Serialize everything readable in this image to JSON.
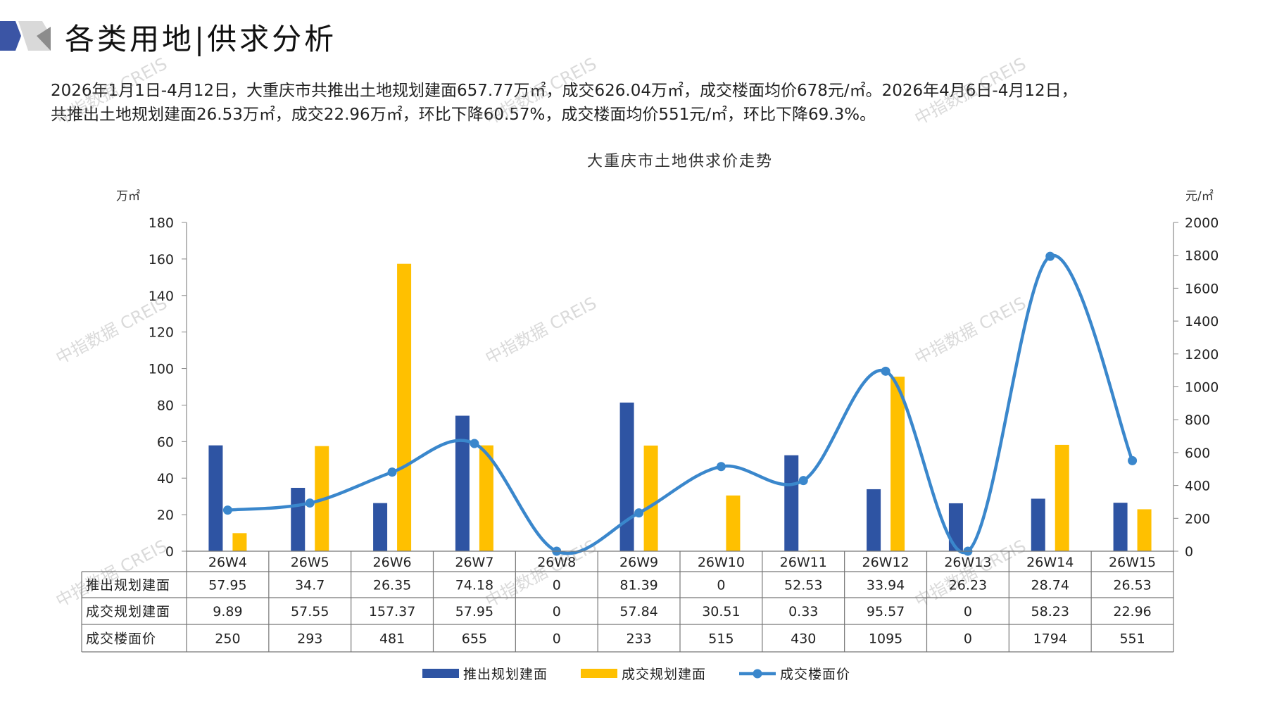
{
  "header": {
    "title": "各类用地|供求分析",
    "summary_line1": "2026年1月1日-4月12日，大重庆市共推出土地规划建面657.77万㎡，成交626.04万㎡，成交楼面均价678元/㎡。2026年4月6日-4月12日，",
    "summary_line2": "共推出土地规划建面26.53万㎡，成交22.96万㎡，环比下降60.57%，成交楼面均价551元/㎡，环比下降69.3%。"
  },
  "watermark": "中指数据 CREIS",
  "colors": {
    "supply": "#2E54A3",
    "deal": "#FFC000",
    "price": "#3A87CC",
    "accent": "#3B55A5"
  },
  "chart_data": {
    "type": "bar",
    "title": "大重庆市土地供求价走势",
    "ylabel_left": "万㎡",
    "ylabel_right": "元/㎡",
    "ylim_left": [
      0,
      180
    ],
    "ylim_right": [
      0,
      2000
    ],
    "yticks_left": [
      0,
      20,
      40,
      60,
      80,
      100,
      120,
      140,
      160,
      180
    ],
    "yticks_right": [
      0,
      200,
      400,
      600,
      800,
      1000,
      1200,
      1400,
      1600,
      1800,
      2000
    ],
    "categories": [
      "26W4",
      "26W5",
      "26W6",
      "26W7",
      "26W8",
      "26W9",
      "26W10",
      "26W11",
      "26W12",
      "26W13",
      "26W14",
      "26W15"
    ],
    "series": [
      {
        "name": "推出规划建面",
        "type": "bar",
        "axis": "left",
        "values": [
          57.95,
          34.7,
          26.35,
          74.18,
          0,
          81.39,
          0,
          52.53,
          33.94,
          26.23,
          28.74,
          26.53
        ],
        "labels": [
          "57.95",
          "34.7",
          "26.35",
          "74.18",
          "0",
          "81.39",
          "0",
          "52.53",
          "33.94",
          "26.23",
          "28.74",
          "26.53"
        ]
      },
      {
        "name": "成交规划建面",
        "type": "bar",
        "axis": "left",
        "values": [
          9.89,
          57.55,
          157.37,
          57.95,
          0,
          57.84,
          30.51,
          0.33,
          95.57,
          0,
          58.23,
          22.96
        ],
        "labels": [
          "9.89",
          "57.55",
          "157.37",
          "57.95",
          "0",
          "57.84",
          "30.51",
          "0.33",
          "95.57",
          "0",
          "58.23",
          "22.96"
        ]
      },
      {
        "name": "成交楼面价",
        "type": "line",
        "axis": "right",
        "values": [
          250,
          293,
          481,
          655,
          0,
          233,
          515,
          430,
          1095,
          0,
          1794,
          551
        ],
        "labels": [
          "250",
          "293",
          "481",
          "655",
          "0",
          "233",
          "515",
          "430",
          "1095",
          "0",
          "1794",
          "551"
        ]
      }
    ],
    "legend": "bottom",
    "grid": false
  }
}
